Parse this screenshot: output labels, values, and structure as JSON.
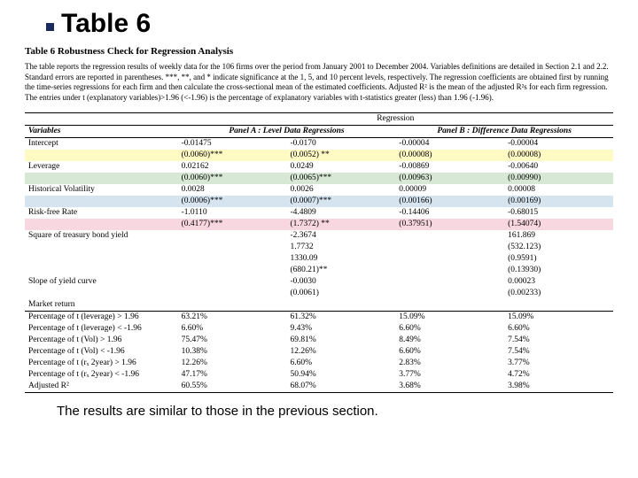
{
  "slide_title": "Table 6",
  "caption": "Table 6    Robustness Check for Regression Analysis",
  "note": "The table reports the regression results of weekly data for the 106 firms over the period from January 2001 to December 2004. Variables definitions are detailed in Section 2.1 and 2.2. Standard errors are reported in parentheses. ***, **, and * indicate significance at the 1, 5, and 10 percent levels, respectively. The regression coefficients are obtained first by running the time-series regressions for each firm and then calculate the cross-sectional mean of the estimated coefficients. Adjusted R² is the mean of the adjusted R²s for each firm regression. The entries under t (explanatory variables)>1.96 (<-1.96) is the percentage of explanatory variables with t-statistics greater (less) than 1.96 (-1.96).",
  "header": {
    "variables": "Variables",
    "regression": "Regression",
    "panelA": "Panel A :  Level Data Regressions",
    "panelB": "Panel B :  Difference Data Regressions"
  },
  "rows": [
    {
      "label": "Intercept",
      "v": [
        "-0.01475",
        "-0.0170",
        "-0.00004",
        "-0.00004"
      ],
      "se": [
        "(0.0060)***",
        "(0.0052) **",
        "(0.00008)",
        "(0.00008)"
      ],
      "hl": "hl-yellow"
    },
    {
      "label": "Leverage",
      "v": [
        "0.02162",
        "0.0249",
        "-0.00869",
        "-0.00640"
      ],
      "se": [
        "(0.0060)***",
        "(0.0065)***",
        "(0.00963)",
        "(0.00990)"
      ],
      "hl": "hl-green"
    },
    {
      "label": "Historical Volatility",
      "v": [
        "0.0028",
        "0.0026",
        "0.00009",
        "0.00008"
      ],
      "se": [
        "(0.0006)***",
        "(0.0007)***",
        "(0.00166)",
        "(0.00169)"
      ],
      "hl": "hl-blue"
    },
    {
      "label": "Risk-free Rate",
      "v": [
        "-1.0110",
        "-4.4809",
        "-0.14406",
        "-0.68015"
      ],
      "se": [
        "(0.4177)***",
        "(1.7372) **",
        "(0.37951)",
        "(1.54074)"
      ],
      "hl": "hl-pink"
    },
    {
      "label": "Square of treasury bond yield",
      "v": [
        "",
        "-2.3674",
        "",
        "161.869"
      ],
      "se": [
        "",
        "1.7732",
        "",
        "(532.123)"
      ]
    },
    {
      "label": "",
      "v": [
        "",
        "1330.09",
        "",
        "(0.9591)"
      ],
      "se": [
        "",
        "(680.21)**",
        "",
        "(0.13930)"
      ]
    },
    {
      "label": "Slope of yield curve",
      "v": [
        "",
        "-0.0030",
        "",
        "0.00023"
      ],
      "se": [
        "",
        "(0.0061)",
        "",
        "(0.00233)"
      ]
    },
    {
      "label": "Market return",
      "v": [
        "",
        "",
        "",
        ""
      ],
      "se": [
        "",
        "",
        "",
        ""
      ]
    }
  ],
  "stats": [
    {
      "label": "Percentage of t (leverage) > 1.96",
      "v": [
        "63.21%",
        "61.32%",
        "15.09%",
        "15.09%"
      ]
    },
    {
      "label": "Percentage of t (leverage) < -1.96",
      "v": [
        "6.60%",
        "9.43%",
        "6.60%",
        "6.60%"
      ]
    },
    {
      "label": "Percentage of t (Vol) > 1.96",
      "v": [
        "75.47%",
        "69.81%",
        "8.49%",
        "7.54%"
      ]
    },
    {
      "label": "Percentage of t (Vol) < -1.96",
      "v": [
        "10.38%",
        "12.26%",
        "6.60%",
        "7.54%"
      ]
    },
    {
      "label": "Percentage of t (rₓ 2year) > 1.96",
      "v": [
        "12.26%",
        "6.60%",
        "2.83%",
        "3.77%"
      ]
    },
    {
      "label": "Percentage of t (rₓ 2year) < -1.96",
      "v": [
        "47.17%",
        "50.94%",
        "3.77%",
        "4.72%"
      ]
    },
    {
      "label": "Adjusted R²",
      "v": [
        "60.55%",
        "68.07%",
        "3.68%",
        "3.98%"
      ]
    }
  ],
  "bottom": "The results are similar to those in the previous section.",
  "colors": {
    "bullet": "#1a2a5c"
  }
}
